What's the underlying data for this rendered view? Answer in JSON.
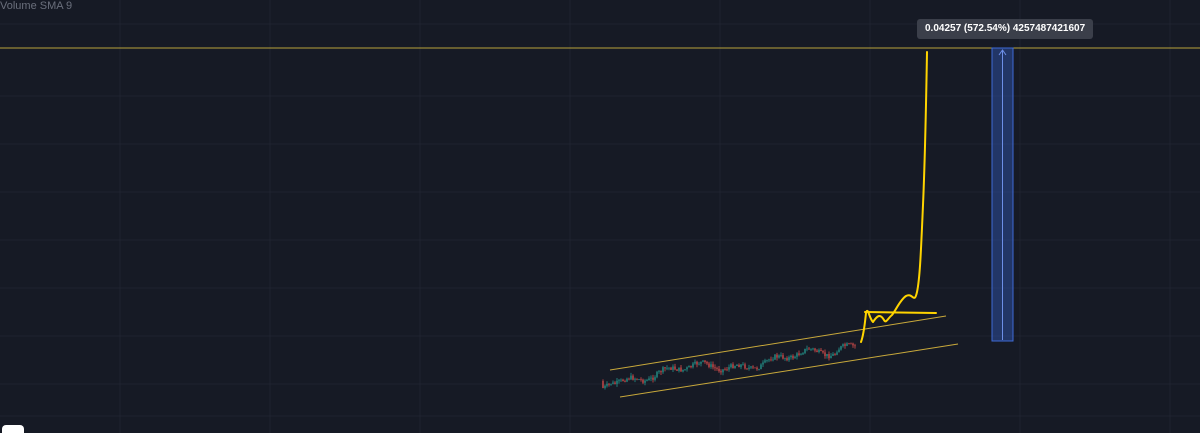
{
  "indicator": {
    "label": "Volume SMA 9"
  },
  "measure": {
    "tooltip": "0.04257 (572.54%) 4257487421607"
  },
  "colors": {
    "background": "#161a25",
    "grid": "#1f2330",
    "drawing": "#ffd400",
    "horizontal_line": "#b8a23a",
    "channel": "#c9a93b",
    "candle_up": "#26a69a",
    "candle_down": "#ef5350",
    "measure_box": "#2d4f9f"
  },
  "chart_data": {
    "type": "candlestick",
    "grid": true,
    "annotations": [
      "ascending channel",
      "horizontal price line at measured target",
      "hand-drawn projection: consolidation then vertical breakout",
      "price range measurement box"
    ]
  }
}
